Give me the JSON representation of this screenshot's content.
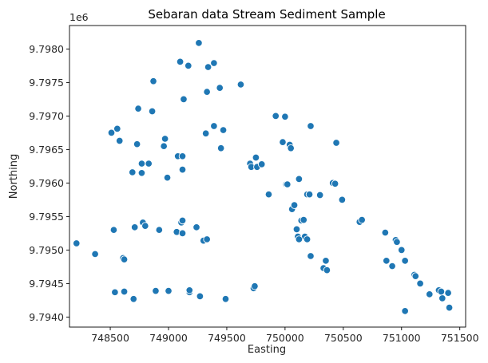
{
  "chart_data": {
    "type": "scatter",
    "title": "Sebaran data Stream Sediment Sample",
    "xlabel": "Easting",
    "ylabel": "Northing",
    "y_offset_label": "1e6",
    "xlim": [
      748150,
      751550
    ],
    "ylim": [
      9.79385,
      9.79835
    ],
    "x_ticks": [
      748500,
      749000,
      749500,
      750000,
      750500,
      751000,
      751500
    ],
    "x_tick_labels": [
      "748500",
      "749000",
      "749500",
      "750000",
      "750500",
      "751000",
      "751500"
    ],
    "y_ticks": [
      9.794,
      9.7945,
      9.795,
      9.7955,
      9.796,
      9.7965,
      9.797,
      9.7975,
      9.798
    ],
    "y_tick_labels": [
      "9.7940",
      "9.7945",
      "9.7950",
      "9.7955",
      "9.7960",
      "9.7965",
      "9.7970",
      "9.7975",
      "9.7980"
    ],
    "point_color": "#1f77b4",
    "series": [
      {
        "x": [
          748210,
          748370,
          748540,
          748610,
          748620,
          748700,
          748530,
          748620,
          748710,
          748890,
          749000,
          749180,
          749180,
          749270,
          749490,
          749730,
          749740,
          748780,
          748800,
          748920,
          749070,
          749120,
          749110,
          749120,
          749240,
          749300,
          749330,
          748510,
          748560,
          748580,
          748730,
          748690,
          748770,
          748770,
          748830,
          748970,
          748960,
          748990,
          749080,
          749120,
          749120,
          749320,
          749390,
          749450,
          749470,
          748740,
          748870,
          748860,
          749130,
          749330,
          749440,
          749620,
          749100,
          749170,
          749340,
          749390,
          749260,
          749700,
          749710,
          749750,
          749760,
          749800,
          749860,
          749920,
          750000,
          749980,
          750010,
          750040,
          750050,
          750020,
          750120,
          750190,
          750210,
          750220,
          750300,
          750410,
          750430,
          750440,
          750490,
          750060,
          750080,
          750100,
          750140,
          750160,
          750110,
          750170,
          750120,
          750190,
          750220,
          750330,
          750350,
          750360,
          750640,
          750660,
          750860,
          750950,
          750960,
          751000,
          751030,
          750870,
          750920,
          751110,
          751120,
          751160,
          751240,
          751320,
          751350,
          751340,
          751400,
          751410,
          751030
        ],
        "y": [
          9.7951,
          9.79494,
          9.79437,
          9.79488,
          9.79438,
          9.79427,
          9.7953,
          9.79486,
          9.79534,
          9.79439,
          9.79439,
          9.79437,
          9.7944,
          9.79431,
          9.79427,
          9.79443,
          9.79446,
          9.79541,
          9.79536,
          9.7953,
          9.79527,
          9.79525,
          9.79541,
          9.79544,
          9.79534,
          9.79514,
          9.79516,
          9.79675,
          9.79681,
          9.79663,
          9.79658,
          9.79616,
          9.79629,
          9.79615,
          9.79629,
          9.79666,
          9.79655,
          9.79608,
          9.7964,
          9.7964,
          9.7962,
          9.79674,
          9.79685,
          9.79652,
          9.79679,
          9.79711,
          9.79752,
          9.79707,
          9.79725,
          9.79736,
          9.79742,
          9.79747,
          9.79781,
          9.79775,
          9.79773,
          9.79779,
          9.79809,
          9.79629,
          9.79624,
          9.79638,
          9.79624,
          9.79628,
          9.79583,
          9.797,
          9.79699,
          9.79661,
          9.79598,
          9.79657,
          9.79652,
          9.79598,
          9.79606,
          9.79583,
          9.79583,
          9.79685,
          9.79582,
          9.796,
          9.79599,
          9.7966,
          9.79575,
          9.79561,
          9.79567,
          9.79531,
          9.79544,
          9.79545,
          9.7952,
          9.7952,
          9.79516,
          9.79516,
          9.79491,
          9.79473,
          9.79484,
          9.7947,
          9.79542,
          9.79545,
          9.79526,
          9.79515,
          9.79512,
          9.795,
          9.79484,
          9.79484,
          9.79476,
          9.79463,
          9.79461,
          9.7945,
          9.79434,
          9.7944,
          9.79428,
          9.79438,
          9.79436,
          9.79414,
          9.79409
        ]
      }
    ]
  }
}
